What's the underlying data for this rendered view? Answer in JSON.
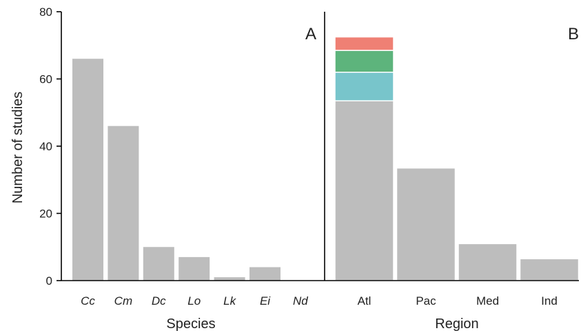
{
  "chart_data": [
    {
      "type": "bar",
      "panel": "A",
      "xlabel": "Species",
      "ylabel": "Number of studies",
      "ylim": [
        0,
        80
      ],
      "yticks": [
        0,
        20,
        40,
        60,
        80
      ],
      "categories": [
        "Cc",
        "Cm",
        "Dc",
        "Lo",
        "Lk",
        "Ei",
        "Nd"
      ],
      "values": [
        66,
        46,
        10,
        7,
        1,
        4,
        0
      ],
      "bar_color": "#bdbdbd",
      "category_style": "italic"
    },
    {
      "type": "bar",
      "stacked": true,
      "panel": "B",
      "xlabel": "Region",
      "ylim": [
        0,
        80
      ],
      "categories": [
        "Atl",
        "Pac",
        "Med",
        "Ind"
      ],
      "series": [
        {
          "color": "#bdbdbd",
          "values": [
            53.5,
            33.5,
            11,
            6.5
          ]
        },
        {
          "color": "#78c5cb",
          "values": [
            8.5,
            0,
            0,
            0
          ]
        },
        {
          "color": "#5db47c",
          "values": [
            6.5,
            0,
            0,
            0
          ]
        },
        {
          "color": "#ef8074",
          "values": [
            4,
            0,
            0,
            0
          ]
        }
      ]
    }
  ]
}
